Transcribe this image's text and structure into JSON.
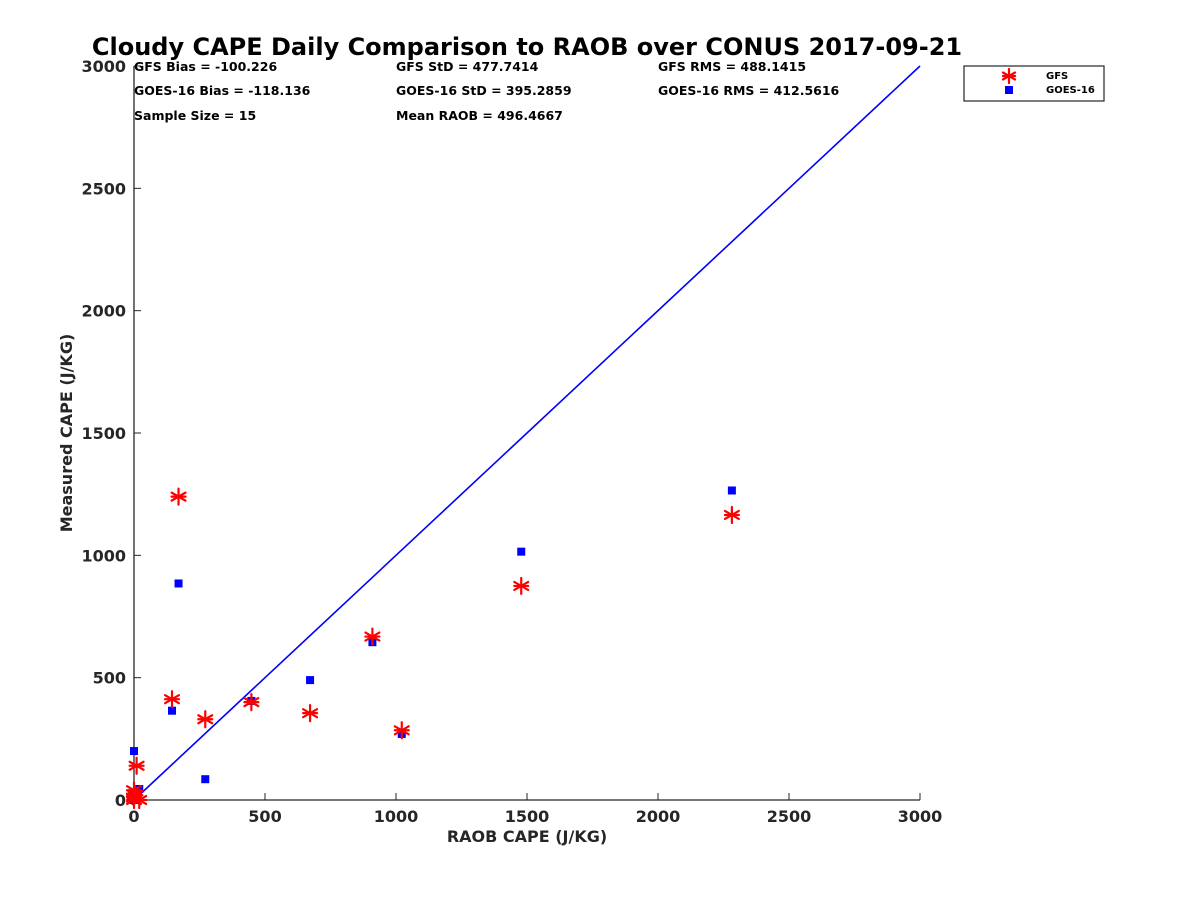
{
  "chart_data": {
    "type": "scatter",
    "title": "Cloudy CAPE Daily Comparison to RAOB over CONUS 2017-09-21",
    "xlabel": "RAOB CAPE (J/KG)",
    "ylabel": "Measured CAPE (J/KG)",
    "xlim": [
      0,
      3000
    ],
    "ylim": [
      0,
      3000
    ],
    "xticks": [
      "0",
      "500",
      "1000",
      "1500",
      "2000",
      "2500",
      "3000"
    ],
    "yticks": [
      "0",
      "500",
      "1000",
      "1500",
      "2000",
      "2500",
      "3000"
    ],
    "grid": false,
    "legend_position": "top-right-outside",
    "stats": [
      {
        "id": "gfs-bias",
        "text": "GFS Bias = -100.226"
      },
      {
        "id": "goes-bias",
        "text": "GOES-16 Bias = -118.136"
      },
      {
        "id": "sample-size",
        "text": "Sample Size = 15"
      },
      {
        "id": "gfs-std",
        "text": "GFS StD = 477.7414"
      },
      {
        "id": "goes-std",
        "text": "GOES-16 StD = 395.2859"
      },
      {
        "id": "mean-raob",
        "text": "Mean RAOB = 496.4667"
      },
      {
        "id": "gfs-rms",
        "text": "GFS RMS = 488.1415"
      },
      {
        "id": "goes-rms",
        "text": "GOES-16 RMS = 412.5616"
      }
    ],
    "reference_line": {
      "name": "1:1 line",
      "color": "#0000ff",
      "x": [
        0,
        3000
      ],
      "y": [
        0,
        3000
      ]
    },
    "series": [
      {
        "name": "GFS",
        "marker": "asterisk",
        "color": "#ff0000",
        "x": [
          0,
          0,
          10,
          20,
          145,
          170,
          272,
          448,
          672,
          910,
          1022,
          1478,
          2282,
          0,
          5
        ],
        "y": [
          0,
          40,
          140,
          0,
          412,
          1240,
          330,
          400,
          355,
          668,
          285,
          875,
          1165,
          10,
          20
        ]
      },
      {
        "name": "GOES-16",
        "marker": "square",
        "color": "#0000ff",
        "x": [
          0,
          0,
          10,
          20,
          145,
          170,
          272,
          448,
          672,
          910,
          1022,
          1478,
          2282,
          0,
          5
        ],
        "y": [
          0,
          200,
          0,
          45,
          365,
          885,
          85,
          405,
          490,
          645,
          270,
          1015,
          1265,
          25,
          10
        ]
      }
    ]
  }
}
